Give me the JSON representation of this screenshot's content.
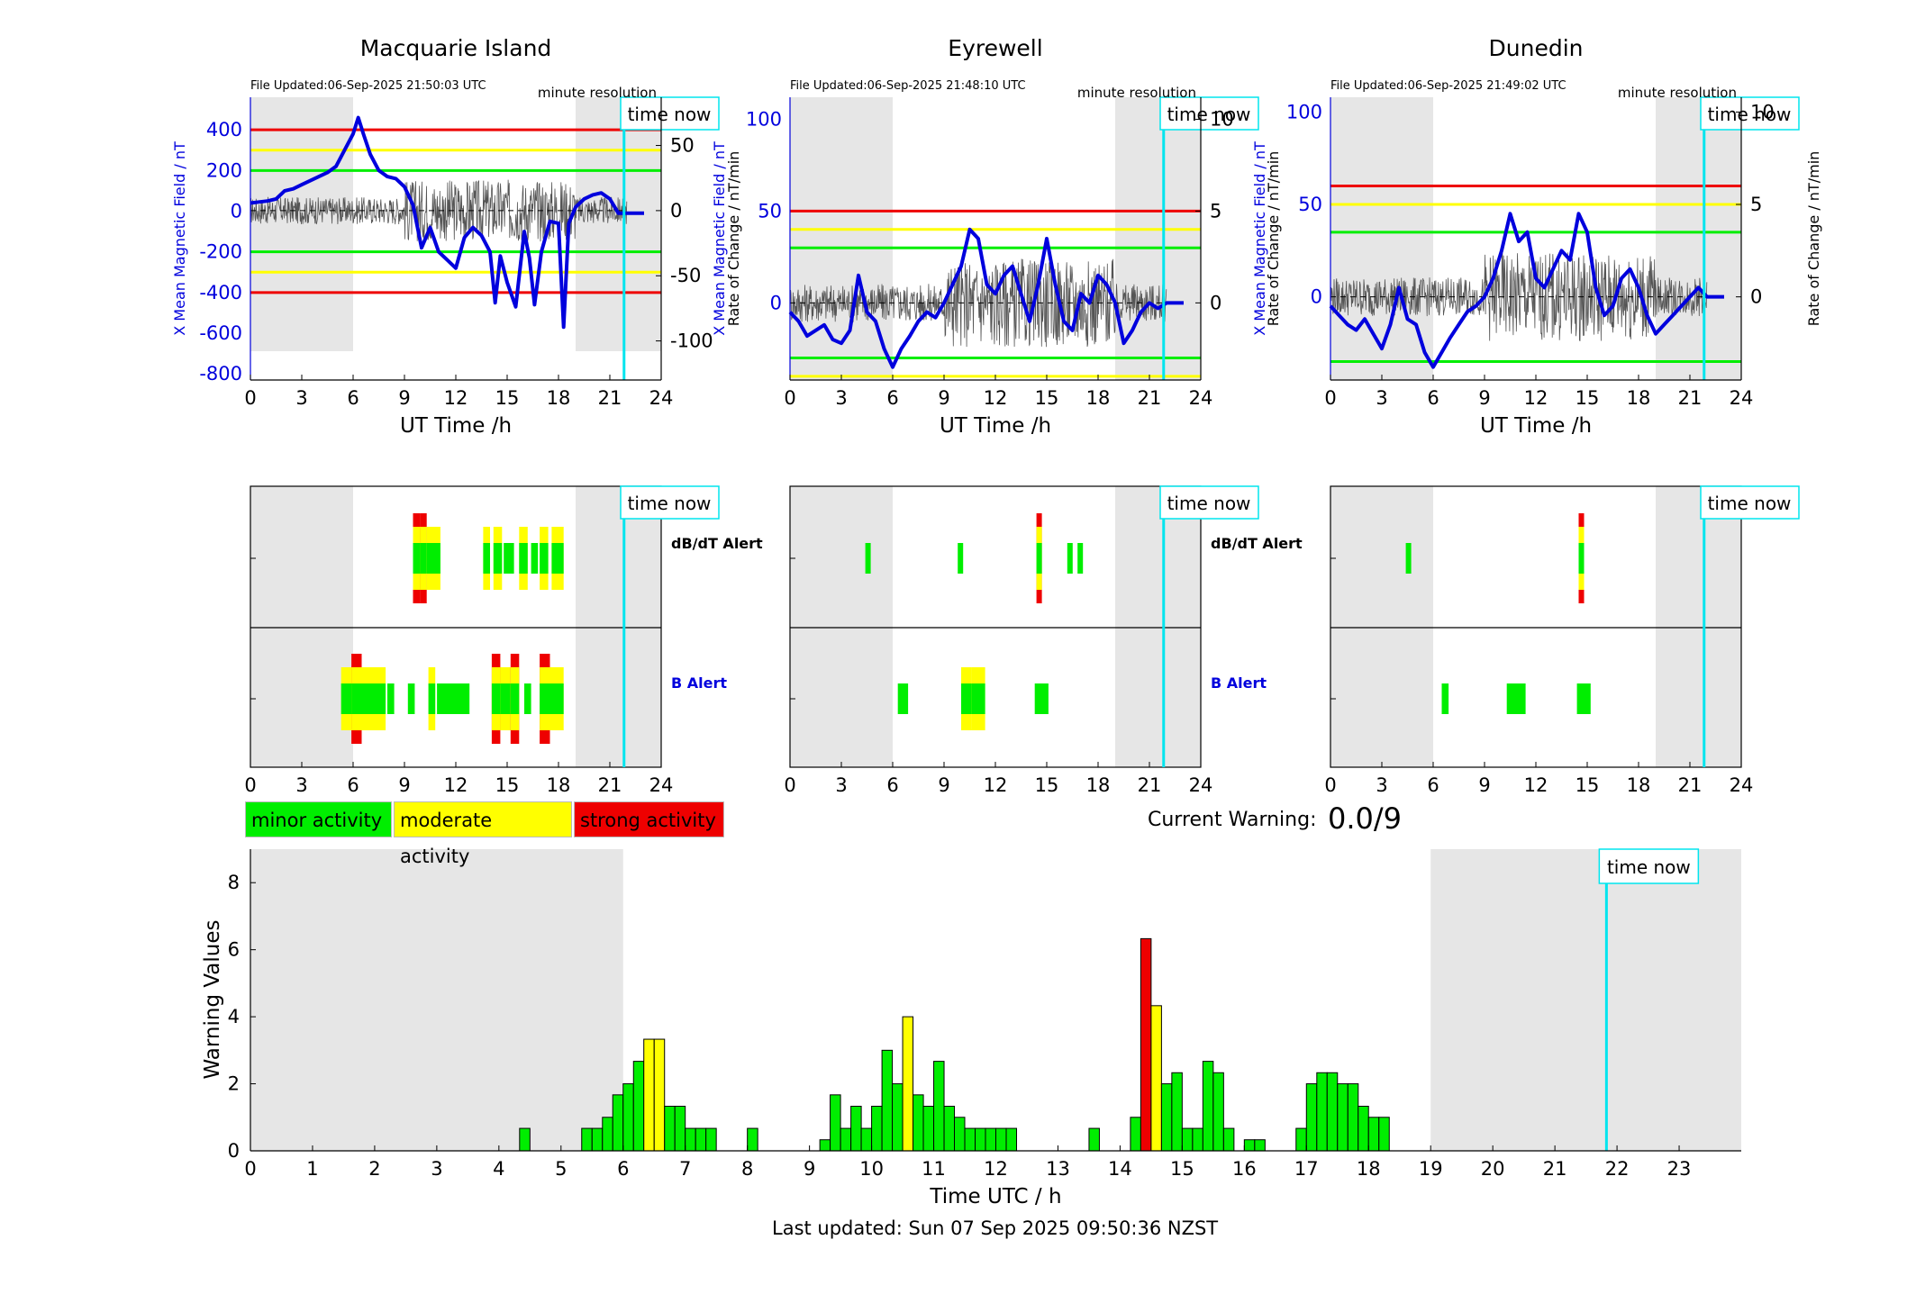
{
  "colors": {
    "minor": "#00ee00",
    "moderate": "#ffff00",
    "strong": "#ee0000",
    "night": "#e6e6e6",
    "now_line": "#00e5ee",
    "mean_field": "#0000dd",
    "rate": "#555555"
  },
  "labels": {
    "time_now": "time now",
    "minute_resolution": "minute resolution",
    "ut_time": "UT Time /h",
    "dbdt_alert": "dB/dT Alert",
    "b_alert": "B Alert",
    "minor": "minor activity",
    "moderate": "moderate activity",
    "strong": "strong activity",
    "current_warning_label": "Current Warning:",
    "current_warning_value": "0.0/9",
    "last_updated": "Last updated: Sun 07 Sep 2025 09:50:36 NZST",
    "rate_ylabel": "Rate of Change / nT/min"
  },
  "chart_data": [
    {
      "type": "line",
      "station": "Macquarie Island",
      "file_updated": "File Updated:06-Sep-2025 21:50:03 UTC",
      "ylabel_left": "X Mean Magnetic Field / nT",
      "ylabel_right": "Rate of Change / nT/min",
      "xlabel": "UT Time /h",
      "xlim": [
        0,
        24
      ],
      "xticks": [
        0,
        3,
        6,
        9,
        12,
        15,
        18,
        21,
        24
      ],
      "ylim_left": [
        -830,
        560
      ],
      "yticks_left": [
        400,
        200,
        0,
        -200,
        -400,
        -600,
        -800
      ],
      "ylim_right": [
        -130,
        87
      ],
      "yticks_right": [
        50,
        0,
        -50,
        -100
      ],
      "thresholds_nT": {
        "strong": 400,
        "moderate": 300,
        "minor": 200
      },
      "night_shading_h": [
        [
          0,
          6
        ],
        [
          19,
          24
        ]
      ],
      "now_h": 21.83,
      "mean_field": {
        "x": [
          0,
          0.5,
          1,
          1.5,
          2,
          2.5,
          3,
          3.5,
          4,
          4.5,
          5,
          5.5,
          6,
          6.3,
          6.6,
          7,
          7.5,
          8,
          8.5,
          9,
          9.5,
          10,
          10.5,
          11,
          11.5,
          12,
          12.5,
          13,
          13.5,
          14,
          14.3,
          14.6,
          15,
          15.5,
          16,
          16.3,
          16.6,
          17,
          17.5,
          18,
          18.3,
          18.6,
          19,
          19.5,
          20,
          20.5,
          21,
          21.5,
          22,
          23
        ],
        "y": [
          40,
          45,
          50,
          60,
          100,
          110,
          130,
          150,
          170,
          190,
          220,
          300,
          380,
          460,
          380,
          280,
          200,
          170,
          160,
          120,
          30,
          -180,
          -80,
          -200,
          -240,
          -280,
          -130,
          -80,
          -120,
          -200,
          -450,
          -220,
          -350,
          -470,
          -100,
          -230,
          -460,
          -200,
          -50,
          -60,
          -570,
          -60,
          20,
          60,
          80,
          90,
          60,
          -10,
          -10,
          -10
        ]
      },
      "rate_noise_amp": 15
    },
    {
      "type": "line",
      "station": "Eyrewell",
      "file_updated": "File Updated:06-Sep-2025 21:48:10 UTC",
      "ylabel_left": "X Mean Magnetic Field / nT",
      "ylabel_right": "Rate of Change / nT/min",
      "xlabel": "UT Time /h",
      "xlim": [
        0,
        24
      ],
      "xticks": [
        0,
        3,
        6,
        9,
        12,
        15,
        18,
        21,
        24
      ],
      "ylim_left": [
        -42,
        112
      ],
      "yticks_left": [
        100,
        50,
        0
      ],
      "ylim_right": [
        -4.2,
        11.2
      ],
      "yticks_right": [
        10,
        5,
        0
      ],
      "thresholds_nT": {
        "strong": 50,
        "moderate": 40,
        "minor": 30
      },
      "night_shading_h": [
        [
          0,
          6
        ],
        [
          19,
          24
        ]
      ],
      "now_h": 21.83,
      "mean_field": {
        "x": [
          0,
          0.5,
          1,
          1.5,
          2,
          2.5,
          3,
          3.5,
          4,
          4.5,
          5,
          5.5,
          6,
          6.5,
          7,
          7.5,
          8,
          8.5,
          9,
          9.5,
          10,
          10.5,
          11,
          11.5,
          12,
          12.5,
          13,
          13.5,
          14,
          14.5,
          15,
          15.5,
          16,
          16.5,
          17,
          17.5,
          18,
          18.5,
          19,
          19.5,
          20,
          20.5,
          21,
          21.5,
          22,
          23
        ],
        "y": [
          -5,
          -10,
          -18,
          -15,
          -12,
          -20,
          -22,
          -15,
          15,
          -5,
          -10,
          -25,
          -35,
          -25,
          -18,
          -10,
          -5,
          -8,
          0,
          10,
          20,
          40,
          35,
          10,
          5,
          15,
          20,
          5,
          -10,
          10,
          35,
          10,
          -10,
          -15,
          5,
          0,
          15,
          10,
          0,
          -22,
          -15,
          -5,
          0,
          -3,
          0,
          0
        ]
      },
      "rate_noise_amp": 1.5
    },
    {
      "type": "line",
      "station": "Dunedin",
      "file_updated": "File Updated:06-Sep-2025 21:49:02 UTC",
      "ylabel_left": "X Mean Magnetic Field / nT",
      "ylabel_right": "Rate of Change / nT/min",
      "xlabel": "UT Time /h",
      "xlim": [
        0,
        24
      ],
      "xticks": [
        0,
        3,
        6,
        9,
        12,
        15,
        18,
        21,
        24
      ],
      "ylim_left": [
        -45,
        108
      ],
      "yticks_left": [
        100,
        50,
        0
      ],
      "ylim_right": [
        -4.5,
        10.8
      ],
      "yticks_right": [
        10,
        5,
        0
      ],
      "thresholds_nT": {
        "strong": 60,
        "moderate": 50,
        "minor": 35
      },
      "night_shading_h": [
        [
          0,
          6
        ],
        [
          19,
          24
        ]
      ],
      "now_h": 21.83,
      "mean_field": {
        "x": [
          0,
          0.5,
          1,
          1.5,
          2,
          2.5,
          3,
          3.5,
          4,
          4.5,
          5,
          5.5,
          6,
          6.5,
          7,
          7.5,
          8,
          8.5,
          9,
          9.5,
          10,
          10.5,
          11,
          11.5,
          12,
          12.5,
          13,
          13.5,
          14,
          14.5,
          15,
          15.5,
          16,
          16.5,
          17,
          17.5,
          18,
          18.5,
          19,
          19.5,
          20,
          20.5,
          21,
          21.5,
          22,
          23
        ],
        "y": [
          -5,
          -10,
          -15,
          -18,
          -12,
          -20,
          -28,
          -15,
          5,
          -12,
          -15,
          -30,
          -38,
          -30,
          -22,
          -15,
          -8,
          -5,
          0,
          10,
          25,
          45,
          30,
          35,
          10,
          5,
          15,
          25,
          20,
          45,
          35,
          5,
          -10,
          -5,
          10,
          15,
          5,
          -10,
          -20,
          -15,
          -10,
          -5,
          0,
          5,
          0,
          0
        ]
      },
      "rate_noise_amp": 1.5
    },
    {
      "type": "table",
      "name": "dB/dT Alert",
      "xlim": [
        0,
        24
      ],
      "entries": [
        [
          {
            "t": 9.5,
            "w": 0.4,
            "lvl": "strong"
          },
          {
            "t": 9.9,
            "w": 0.4,
            "lvl": "strong"
          },
          {
            "t": 10.3,
            "w": 0.8,
            "lvl": "moderate"
          },
          {
            "t": 13.6,
            "w": 0.4,
            "lvl": "moderate"
          },
          {
            "t": 14.2,
            "w": 0.5,
            "lvl": "moderate"
          },
          {
            "t": 14.8,
            "w": 0.6,
            "lvl": "minor"
          },
          {
            "t": 15.7,
            "w": 0.5,
            "lvl": "moderate"
          },
          {
            "t": 16.4,
            "w": 0.4,
            "lvl": "minor"
          },
          {
            "t": 16.9,
            "w": 0.5,
            "lvl": "moderate"
          },
          {
            "t": 17.6,
            "w": 0.7,
            "lvl": "moderate"
          }
        ],
        [
          {
            "t": 4.4,
            "w": 0.3,
            "lvl": "minor"
          },
          {
            "t": 9.8,
            "w": 0.3,
            "lvl": "minor"
          },
          {
            "t": 14.4,
            "w": 0.3,
            "lvl": "strong"
          },
          {
            "t": 16.2,
            "w": 0.3,
            "lvl": "minor"
          },
          {
            "t": 16.8,
            "w": 0.3,
            "lvl": "minor"
          }
        ],
        [
          {
            "t": 4.4,
            "w": 0.3,
            "lvl": "minor"
          },
          {
            "t": 14.5,
            "w": 0.3,
            "lvl": "strong"
          }
        ]
      ]
    },
    {
      "type": "table",
      "name": "B Alert",
      "xlim": [
        0,
        24
      ],
      "entries": [
        [
          {
            "t": 5.3,
            "w": 0.6,
            "lvl": "moderate"
          },
          {
            "t": 5.9,
            "w": 0.6,
            "lvl": "strong"
          },
          {
            "t": 6.5,
            "w": 1.4,
            "lvl": "moderate"
          },
          {
            "t": 8.0,
            "w": 0.4,
            "lvl": "minor"
          },
          {
            "t": 9.2,
            "w": 0.4,
            "lvl": "minor"
          },
          {
            "t": 10.4,
            "w": 0.4,
            "lvl": "moderate"
          },
          {
            "t": 10.9,
            "w": 1.9,
            "lvl": "minor"
          },
          {
            "t": 14.1,
            "w": 0.5,
            "lvl": "strong"
          },
          {
            "t": 14.6,
            "w": 0.6,
            "lvl": "moderate"
          },
          {
            "t": 15.2,
            "w": 0.5,
            "lvl": "strong"
          },
          {
            "t": 16.0,
            "w": 0.4,
            "lvl": "minor"
          },
          {
            "t": 16.9,
            "w": 0.6,
            "lvl": "strong"
          },
          {
            "t": 17.5,
            "w": 0.8,
            "lvl": "moderate"
          }
        ],
        [
          {
            "t": 6.3,
            "w": 0.6,
            "lvl": "minor"
          },
          {
            "t": 10.0,
            "w": 0.6,
            "lvl": "moderate"
          },
          {
            "t": 10.6,
            "w": 0.8,
            "lvl": "moderate"
          },
          {
            "t": 14.3,
            "w": 0.8,
            "lvl": "minor"
          }
        ],
        [
          {
            "t": 6.5,
            "w": 0.4,
            "lvl": "minor"
          },
          {
            "t": 10.3,
            "w": 0.7,
            "lvl": "minor"
          },
          {
            "t": 11.0,
            "w": 0.4,
            "lvl": "minor"
          },
          {
            "t": 14.4,
            "w": 0.8,
            "lvl": "minor"
          }
        ]
      ]
    },
    {
      "type": "bar",
      "ylabel": "Warning Values",
      "xlabel": "Time UTC / h",
      "xlim": [
        0,
        24
      ],
      "ylim": [
        0,
        9
      ],
      "yticks": [
        0,
        2,
        4,
        6,
        8
      ],
      "xticks": [
        0,
        1,
        2,
        3,
        4,
        5,
        6,
        7,
        8,
        9,
        10,
        11,
        12,
        13,
        14,
        15,
        16,
        17,
        18,
        19,
        20,
        21,
        22,
        23
      ],
      "bin_width_h": 0.1667,
      "night_shading_h": [
        [
          0,
          6
        ],
        [
          19,
          24
        ]
      ],
      "now_h": 21.83,
      "bars": [
        {
          "x": 4.333,
          "v": 0.67,
          "lvl": "minor"
        },
        {
          "x": 5.333,
          "v": 0.67,
          "lvl": "minor"
        },
        {
          "x": 5.5,
          "v": 0.67,
          "lvl": "minor"
        },
        {
          "x": 5.667,
          "v": 1.0,
          "lvl": "minor"
        },
        {
          "x": 5.833,
          "v": 1.67,
          "lvl": "minor"
        },
        {
          "x": 6.0,
          "v": 2.0,
          "lvl": "minor"
        },
        {
          "x": 6.167,
          "v": 2.67,
          "lvl": "minor"
        },
        {
          "x": 6.333,
          "v": 3.33,
          "lvl": "moderate"
        },
        {
          "x": 6.5,
          "v": 3.33,
          "lvl": "moderate"
        },
        {
          "x": 6.667,
          "v": 1.33,
          "lvl": "minor"
        },
        {
          "x": 6.833,
          "v": 1.33,
          "lvl": "minor"
        },
        {
          "x": 7.0,
          "v": 0.67,
          "lvl": "minor"
        },
        {
          "x": 7.167,
          "v": 0.67,
          "lvl": "minor"
        },
        {
          "x": 7.333,
          "v": 0.67,
          "lvl": "minor"
        },
        {
          "x": 8.0,
          "v": 0.67,
          "lvl": "minor"
        },
        {
          "x": 9.167,
          "v": 0.33,
          "lvl": "minor"
        },
        {
          "x": 9.333,
          "v": 1.67,
          "lvl": "minor"
        },
        {
          "x": 9.5,
          "v": 0.67,
          "lvl": "minor"
        },
        {
          "x": 9.667,
          "v": 1.33,
          "lvl": "minor"
        },
        {
          "x": 9.833,
          "v": 0.67,
          "lvl": "minor"
        },
        {
          "x": 10.0,
          "v": 1.33,
          "lvl": "minor"
        },
        {
          "x": 10.167,
          "v": 3.0,
          "lvl": "minor"
        },
        {
          "x": 10.333,
          "v": 2.0,
          "lvl": "minor"
        },
        {
          "x": 10.5,
          "v": 4.0,
          "lvl": "moderate"
        },
        {
          "x": 10.667,
          "v": 1.67,
          "lvl": "minor"
        },
        {
          "x": 10.833,
          "v": 1.33,
          "lvl": "minor"
        },
        {
          "x": 11.0,
          "v": 2.67,
          "lvl": "minor"
        },
        {
          "x": 11.167,
          "v": 1.33,
          "lvl": "minor"
        },
        {
          "x": 11.333,
          "v": 1.0,
          "lvl": "minor"
        },
        {
          "x": 11.5,
          "v": 0.67,
          "lvl": "minor"
        },
        {
          "x": 11.667,
          "v": 0.67,
          "lvl": "minor"
        },
        {
          "x": 11.833,
          "v": 0.67,
          "lvl": "minor"
        },
        {
          "x": 12.0,
          "v": 0.67,
          "lvl": "minor"
        },
        {
          "x": 12.167,
          "v": 0.67,
          "lvl": "minor"
        },
        {
          "x": 13.5,
          "v": 0.67,
          "lvl": "minor"
        },
        {
          "x": 14.167,
          "v": 1.0,
          "lvl": "minor"
        },
        {
          "x": 14.333,
          "v": 6.33,
          "lvl": "strong"
        },
        {
          "x": 14.5,
          "v": 4.33,
          "lvl": "moderate"
        },
        {
          "x": 14.667,
          "v": 2.0,
          "lvl": "minor"
        },
        {
          "x": 14.833,
          "v": 2.33,
          "lvl": "minor"
        },
        {
          "x": 15.0,
          "v": 0.67,
          "lvl": "minor"
        },
        {
          "x": 15.167,
          "v": 0.67,
          "lvl": "minor"
        },
        {
          "x": 15.333,
          "v": 2.67,
          "lvl": "minor"
        },
        {
          "x": 15.5,
          "v": 2.33,
          "lvl": "minor"
        },
        {
          "x": 15.667,
          "v": 0.67,
          "lvl": "minor"
        },
        {
          "x": 16.0,
          "v": 0.33,
          "lvl": "minor"
        },
        {
          "x": 16.167,
          "v": 0.33,
          "lvl": "minor"
        },
        {
          "x": 16.833,
          "v": 0.67,
          "lvl": "minor"
        },
        {
          "x": 17.0,
          "v": 2.0,
          "lvl": "minor"
        },
        {
          "x": 17.167,
          "v": 2.33,
          "lvl": "minor"
        },
        {
          "x": 17.333,
          "v": 2.33,
          "lvl": "minor"
        },
        {
          "x": 17.5,
          "v": 2.0,
          "lvl": "minor"
        },
        {
          "x": 17.667,
          "v": 2.0,
          "lvl": "minor"
        },
        {
          "x": 17.833,
          "v": 1.33,
          "lvl": "minor"
        },
        {
          "x": 18.0,
          "v": 1.0,
          "lvl": "minor"
        },
        {
          "x": 18.167,
          "v": 1.0,
          "lvl": "minor"
        }
      ]
    }
  ]
}
